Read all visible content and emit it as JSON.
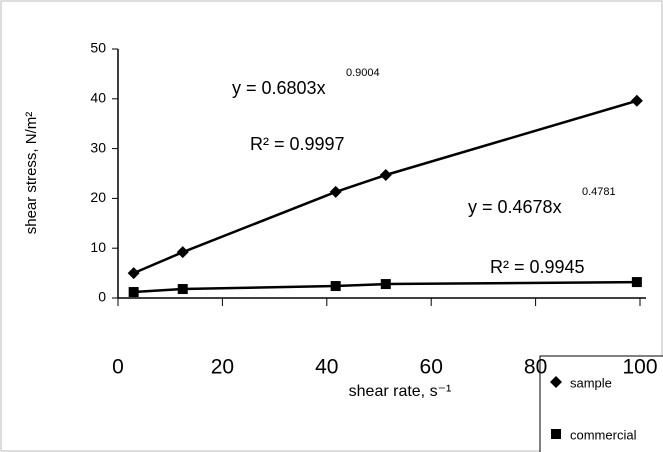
{
  "chart_data": {
    "type": "line",
    "x_label": "shear rate, s⁻¹",
    "y_label": "shear stress, N/m²",
    "x": [
      3,
      12.4,
      41.7,
      51.3,
      99.4
    ],
    "series": [
      {
        "name": "sample",
        "color": "#000000",
        "marker": "diamond",
        "values": [
          5,
          9.2,
          21.3,
          24.7,
          39.6
        ]
      },
      {
        "name": "commercial",
        "color": "#000000",
        "marker": "square",
        "values": [
          1.2,
          1.8,
          2.4,
          2.8,
          3.2
        ]
      }
    ],
    "annotations": [
      {
        "text": "y = 0.6803x",
        "sup": "0.9004"
      },
      {
        "text": "R² = 0.9997"
      },
      {
        "text": "y = 0.4678x",
        "sup": "0.4781"
      },
      {
        "text": "R² = 0.9945"
      }
    ],
    "xlim": [
      0,
      100
    ],
    "xticks": [
      0,
      20,
      40,
      60,
      80,
      100
    ],
    "ylim": [
      0,
      50
    ],
    "yticks": [
      0,
      10,
      20,
      30,
      40,
      50
    ],
    "grid": false,
    "legend": "bottom-right"
  }
}
